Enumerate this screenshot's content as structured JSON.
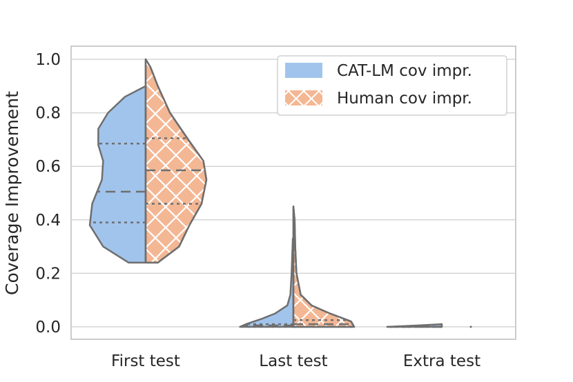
{
  "chart_data": {
    "type": "split-violin",
    "title": "",
    "xlabel": "",
    "ylabel": "Coverage Improvement",
    "ylim": [
      -0.05,
      1.05
    ],
    "yticks": [
      0.0,
      0.2,
      0.4,
      0.6,
      0.8,
      1.0
    ],
    "ytick_labels": [
      "0.0",
      "0.2",
      "0.4",
      "0.6",
      "0.8",
      "1.0"
    ],
    "grid": true,
    "legend_position": "top-right",
    "categories": [
      "First test",
      "Last test",
      "Extra test"
    ],
    "series": [
      {
        "name": "CAT-LM cov impr.",
        "side": "left",
        "color": "#a1c4ec",
        "hatch": "none",
        "violins": [
          {
            "category": "First test",
            "range": [
              0.24,
              0.9
            ],
            "quartiles": [
              0.39,
              0.505,
              0.685
            ],
            "profile": [
              [
                0.24,
                0.28
              ],
              [
                0.3,
                0.7
              ],
              [
                0.38,
                0.92
              ],
              [
                0.46,
                0.88
              ],
              [
                0.55,
                0.72
              ],
              [
                0.62,
                0.7
              ],
              [
                0.68,
                0.78
              ],
              [
                0.74,
                0.78
              ],
              [
                0.8,
                0.62
              ],
              [
                0.86,
                0.34
              ],
              [
                0.9,
                0.0
              ]
            ]
          },
          {
            "category": "Last test",
            "range": [
              0.0,
              0.33
            ],
            "quartiles": [
              0.0,
              0.005,
              0.01
            ],
            "profile": [
              [
                0.0,
                0.88
              ],
              [
                0.01,
                0.78
              ],
              [
                0.03,
                0.52
              ],
              [
                0.05,
                0.3
              ],
              [
                0.08,
                0.1
              ],
              [
                0.12,
                0.05
              ],
              [
                0.2,
                0.03
              ],
              [
                0.33,
                0.01
              ]
            ]
          },
          {
            "category": "Extra test",
            "range": [
              0.0,
              0.01
            ],
            "quartiles": [
              0.0,
              0.0,
              0.0
            ],
            "profile": [
              [
                0.0,
                0.9
              ],
              [
                0.005,
                0.4
              ],
              [
                0.01,
                0.0
              ]
            ]
          }
        ]
      },
      {
        "name": "Human cov impr.",
        "side": "right",
        "color": "#f4b794",
        "hatch": "cross-white",
        "violins": [
          {
            "category": "First test",
            "range": [
              0.24,
              1.0
            ],
            "quartiles": [
              0.46,
              0.585,
              0.705
            ],
            "profile": [
              [
                0.24,
                0.2
              ],
              [
                0.3,
                0.55
              ],
              [
                0.38,
                0.72
              ],
              [
                0.46,
                0.92
              ],
              [
                0.55,
                1.0
              ],
              [
                0.62,
                0.95
              ],
              [
                0.7,
                0.7
              ],
              [
                0.8,
                0.4
              ],
              [
                0.9,
                0.2
              ],
              [
                0.97,
                0.08
              ],
              [
                1.0,
                0.0
              ]
            ]
          },
          {
            "category": "Last test",
            "range": [
              0.0,
              0.45
            ],
            "quartiles": [
              0.0,
              0.01,
              0.025
            ],
            "profile": [
              [
                0.0,
                1.0
              ],
              [
                0.02,
                0.95
              ],
              [
                0.05,
                0.6
              ],
              [
                0.08,
                0.3
              ],
              [
                0.12,
                0.12
              ],
              [
                0.2,
                0.05
              ],
              [
                0.3,
                0.03
              ],
              [
                0.4,
                0.02
              ],
              [
                0.45,
                0.0
              ]
            ]
          },
          {
            "category": "Extra test",
            "range": [
              0.0,
              0.0
            ],
            "quartiles": [
              0.0,
              0.0,
              0.0
            ],
            "profile": [
              [
                0.0,
                0.0
              ]
            ]
          }
        ]
      }
    ]
  },
  "colors": {
    "cat_lm": "#a1c4ec",
    "human": "#f4b794",
    "outline": "#6e6e6e",
    "grid": "#d5d5d5"
  }
}
